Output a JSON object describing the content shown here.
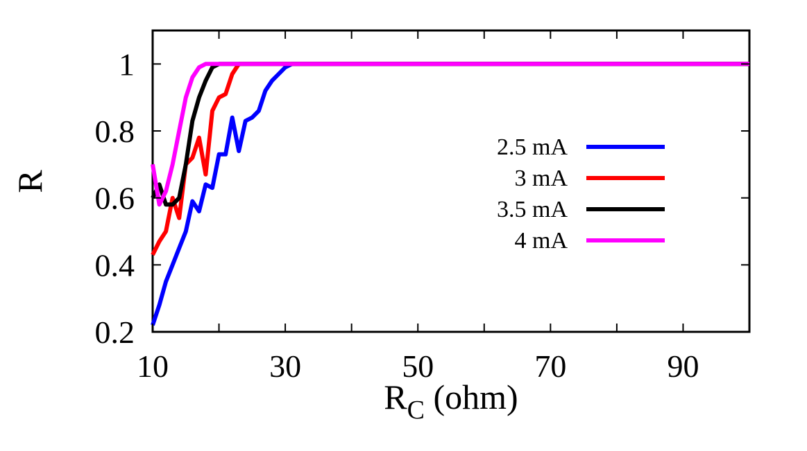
{
  "chart_data": {
    "type": "line",
    "xlabel": "R",
    "xlabel_subscript": "C",
    "xlabel_unit": " (ohm)",
    "ylabel": "R",
    "xlim": [
      10,
      100
    ],
    "ylim": [
      0.2,
      1.1
    ],
    "x_ticks": [
      10,
      30,
      50,
      70,
      90
    ],
    "x_tick_labels": [
      "10",
      "30",
      "50",
      "70",
      "90"
    ],
    "x_minor_ticks": [
      20,
      40,
      60,
      80
    ],
    "y_ticks": [
      0.2,
      0.4,
      0.6,
      0.8,
      1.0
    ],
    "y_tick_labels": [
      "0.2",
      "0.4",
      "0.6",
      "0.8",
      "1"
    ],
    "legend_position": "right",
    "grid": false,
    "series": [
      {
        "name": "2.5 mA",
        "color": "#0000ff",
        "x": [
          10,
          11,
          12,
          13,
          14,
          15,
          16,
          17,
          18,
          19,
          20,
          21,
          22,
          23,
          24,
          25,
          26,
          27,
          28,
          29,
          30,
          31,
          32,
          33,
          100
        ],
        "y": [
          0.22,
          0.28,
          0.35,
          0.4,
          0.45,
          0.5,
          0.59,
          0.56,
          0.64,
          0.63,
          0.73,
          0.73,
          0.84,
          0.74,
          0.83,
          0.84,
          0.86,
          0.92,
          0.95,
          0.97,
          0.99,
          1.0,
          1.0,
          1.0,
          1.0
        ]
      },
      {
        "name": "3 mA",
        "color": "#ff0000",
        "x": [
          10,
          11,
          12,
          13,
          14,
          15,
          16,
          17,
          18,
          19,
          20,
          21,
          22,
          23,
          24,
          100
        ],
        "y": [
          0.43,
          0.47,
          0.5,
          0.6,
          0.54,
          0.7,
          0.72,
          0.78,
          0.67,
          0.86,
          0.9,
          0.91,
          0.97,
          1.0,
          1.0,
          1.0
        ]
      },
      {
        "name": "3.5 mA",
        "color": "#000000",
        "x": [
          10,
          11,
          12,
          13,
          14,
          15,
          16,
          17,
          18,
          19,
          20,
          100
        ],
        "y": [
          0.6,
          0.64,
          0.58,
          0.58,
          0.6,
          0.7,
          0.83,
          0.9,
          0.95,
          0.99,
          1.0,
          1.0
        ]
      },
      {
        "name": "4 mA",
        "color": "#ff00ff",
        "x": [
          10,
          11,
          12,
          13,
          14,
          15,
          16,
          17,
          18,
          100
        ],
        "y": [
          0.7,
          0.58,
          0.62,
          0.7,
          0.8,
          0.9,
          0.96,
          0.99,
          1.0,
          1.0
        ]
      }
    ]
  }
}
